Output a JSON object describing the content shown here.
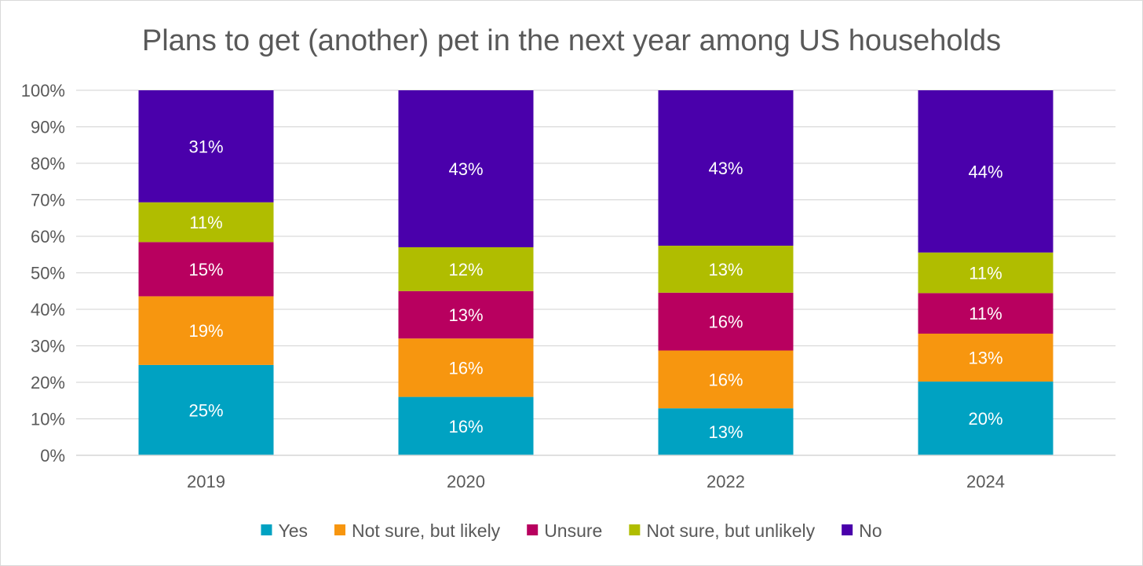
{
  "chart_data": {
    "type": "bar",
    "stacked": true,
    "title": "Plans to get (another) pet in the next year among US households",
    "categories": [
      "2019",
      "2020",
      "2022",
      "2024"
    ],
    "series": [
      {
        "name": "Yes",
        "color": "#00a2c2",
        "values": [
          25,
          16,
          13,
          20
        ],
        "labels": [
          "25%",
          "16%",
          "13%",
          "20%"
        ]
      },
      {
        "name": "Not sure, but likely",
        "color": "#f7960f",
        "values": [
          19,
          16,
          16,
          13
        ],
        "labels": [
          "19%",
          "16%",
          "16%",
          "13%"
        ]
      },
      {
        "name": "Unsure",
        "color": "#b8005f",
        "values": [
          15,
          13,
          16,
          11
        ],
        "labels": [
          "15%",
          "13%",
          "16%",
          "11%"
        ]
      },
      {
        "name": "Not sure, but unlikely",
        "color": "#b0bd00",
        "values": [
          11,
          12,
          13,
          11
        ],
        "labels": [
          "11%",
          "12%",
          "13%",
          "11%"
        ]
      },
      {
        "name": "No",
        "color": "#4a00ab",
        "values": [
          31,
          43,
          43,
          44
        ],
        "labels": [
          "31%",
          "43%",
          "43%",
          "44%"
        ]
      }
    ],
    "ylim": [
      0,
      100
    ],
    "yticks": [
      "0%",
      "10%",
      "20%",
      "30%",
      "40%",
      "50%",
      "60%",
      "70%",
      "80%",
      "90%",
      "100%"
    ],
    "grid": true,
    "legend": "bottom",
    "normalized_to_100": true
  }
}
